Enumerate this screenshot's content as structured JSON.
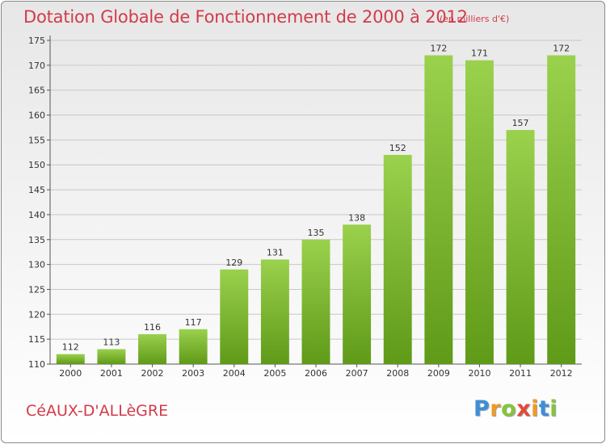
{
  "header": {
    "title": "Dotation Globale de Fonctionnement de 2000 à 2012",
    "unit": "(en milliers d'€)"
  },
  "footer": {
    "commune": "CéAUX-D'ALLèGRE",
    "logo": {
      "letters": [
        "P",
        "r",
        "o",
        "x",
        "i",
        "t",
        "i"
      ],
      "colors": [
        "#3d8fd6",
        "#f09a22",
        "#86c43a",
        "#e34a3a",
        "#f09a22",
        "#3d8fd6",
        "#86c43a"
      ]
    }
  },
  "colors": {
    "bar_light": "#9ad14d",
    "bar_dark": "#5f9a18",
    "title": "#d23b4a",
    "grid": "#c8c8c8"
  },
  "chart_data": {
    "type": "bar",
    "title": "Dotation Globale de Fonctionnement de 2000 à 2012",
    "subtitle": "(en milliers d'€)",
    "categories": [
      "2000",
      "2001",
      "2002",
      "2003",
      "2004",
      "2005",
      "2006",
      "2007",
      "2008",
      "2009",
      "2010",
      "2011",
      "2012"
    ],
    "values": [
      112,
      113,
      116,
      117,
      129,
      131,
      135,
      138,
      152,
      172,
      171,
      157,
      172
    ],
    "value_labels": [
      "112",
      "113",
      "116",
      "117",
      "129",
      "131",
      "135",
      "138",
      "152",
      "172",
      "171",
      "157",
      "172"
    ],
    "ylim": [
      110,
      175
    ],
    "yticks": [
      110,
      115,
      120,
      125,
      130,
      135,
      140,
      145,
      150,
      155,
      160,
      165,
      170,
      175
    ],
    "ytick_labels": [
      "110",
      "115",
      "120",
      "125",
      "130",
      "135",
      "140",
      "145",
      "150",
      "155",
      "160",
      "165",
      "170",
      "175"
    ],
    "grid": true,
    "legend": "none"
  }
}
